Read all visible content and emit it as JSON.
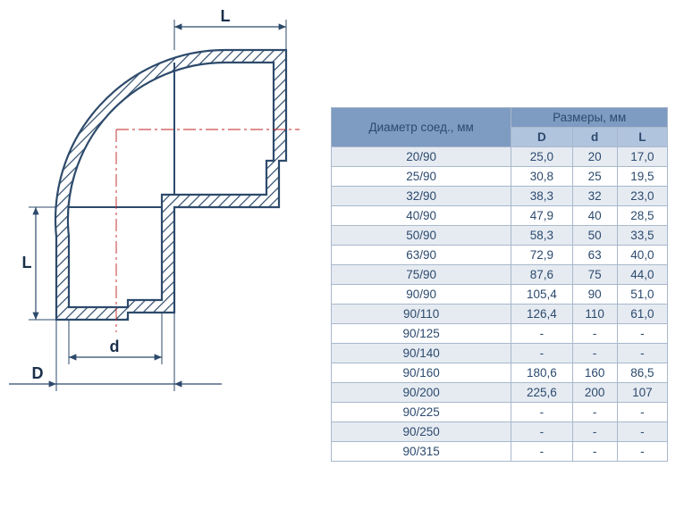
{
  "diagram": {
    "labels": {
      "L_top": "L",
      "L_left": "L",
      "d": "d",
      "D": "D"
    },
    "colors": {
      "outline": "#2d4a6b",
      "hatch": "#2d4a6b",
      "axis": "#c02020",
      "dim_line": "#2d4a6b",
      "bg": "#ffffff"
    },
    "line_widths": {
      "outline": 2.2,
      "dim": 1.2,
      "axis": 0.9
    }
  },
  "table": {
    "header_bg_main": "#7e9bc1",
    "header_bg_sub": "#b0c4de",
    "row_bg_even": "#e6ebf2",
    "row_bg_odd": "#ffffff",
    "border_color": "#a8b8cc",
    "text_color": "#2c4a6e",
    "font_size_pt": 10,
    "col1_header": "Диаметр соед., мм",
    "col_group_header": "Размеры, мм",
    "sub_headers": [
      "D",
      "d",
      "L"
    ],
    "rows": [
      [
        "20/90",
        "25,0",
        "20",
        "17,0"
      ],
      [
        "25/90",
        "30,8",
        "25",
        "19,5"
      ],
      [
        "32/90",
        "38,3",
        "32",
        "23,0"
      ],
      [
        "40/90",
        "47,9",
        "40",
        "28,5"
      ],
      [
        "50/90",
        "58,3",
        "50",
        "33,5"
      ],
      [
        "63/90",
        "72,9",
        "63",
        "40,0"
      ],
      [
        "75/90",
        "87,6",
        "75",
        "44,0"
      ],
      [
        "90/90",
        "105,4",
        "90",
        "51,0"
      ],
      [
        "90/110",
        "126,4",
        "110",
        "61,0"
      ],
      [
        "90/125",
        "-",
        "-",
        "-"
      ],
      [
        "90/140",
        "-",
        "-",
        "-"
      ],
      [
        "90/160",
        "180,6",
        "160",
        "86,5"
      ],
      [
        "90/200",
        "225,6",
        "200",
        "107"
      ],
      [
        "90/225",
        "-",
        "-",
        "-"
      ],
      [
        "90/250",
        "-",
        "-",
        "-"
      ],
      [
        "90/315",
        "-",
        "-",
        "-"
      ]
    ]
  }
}
